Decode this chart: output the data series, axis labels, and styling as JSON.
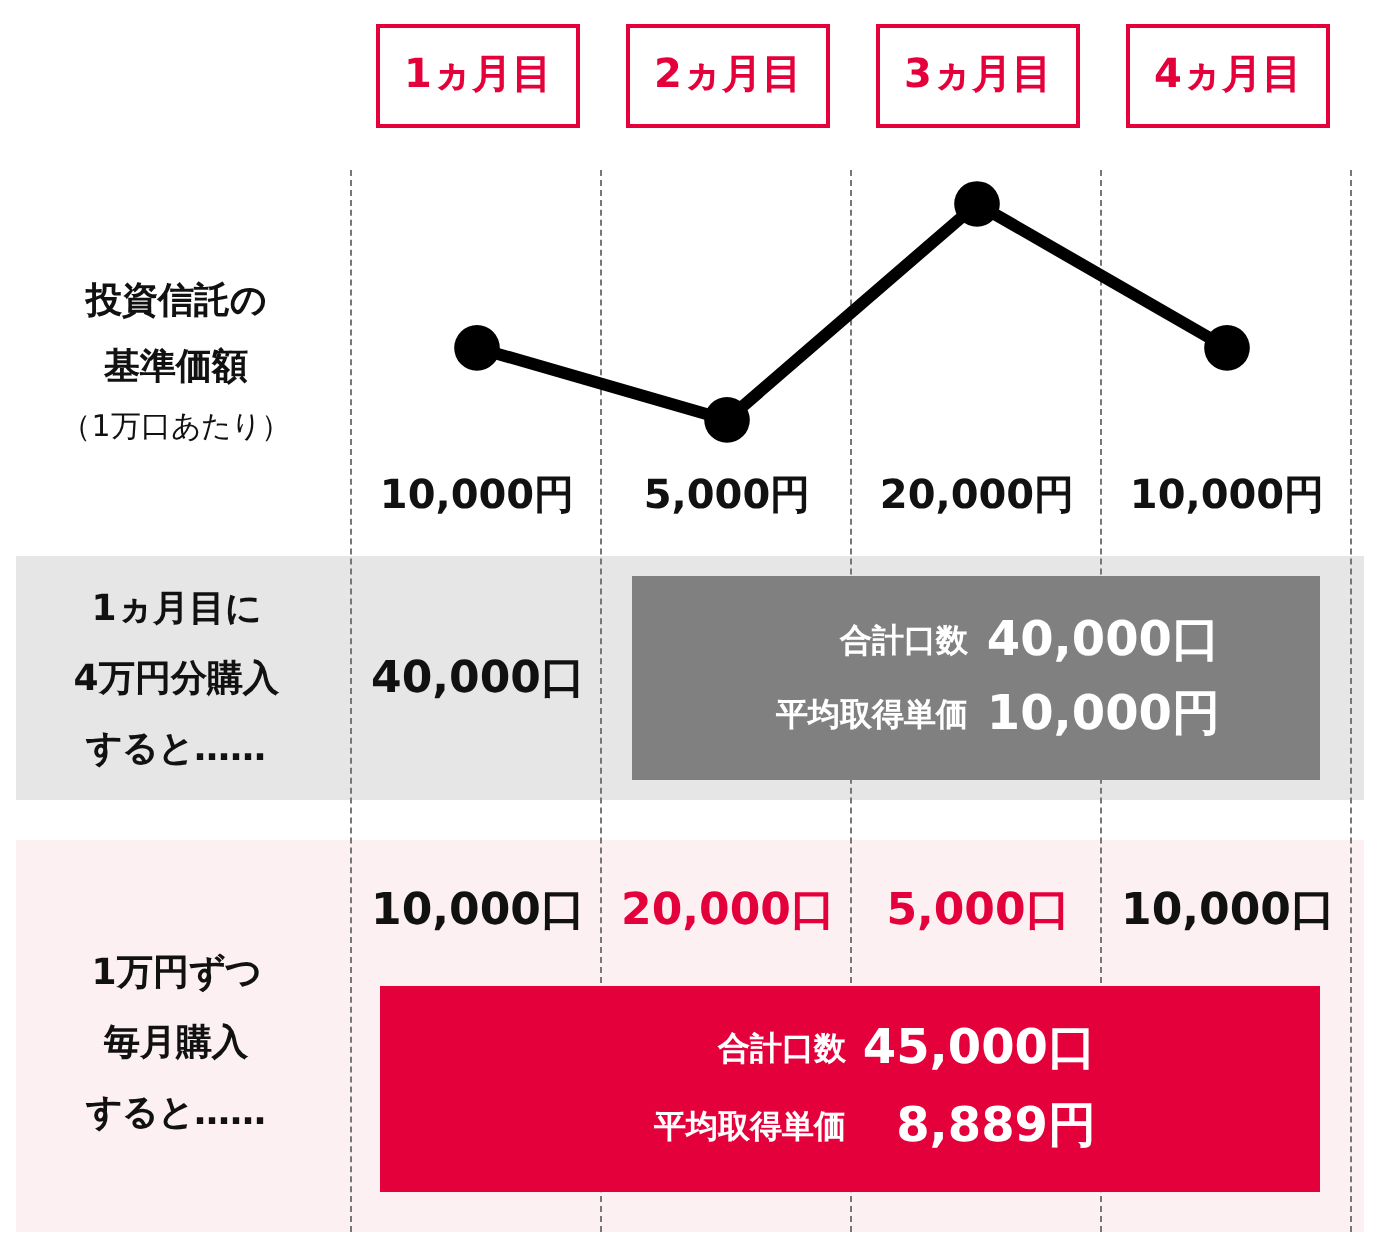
{
  "chart_data": {
    "type": "line",
    "ylabel": "投資信託の基準価額",
    "categories": [
      "1ヵ月目",
      "2ヵ月目",
      "3ヵ月目",
      "4ヵ月目"
    ],
    "series": [
      {
        "color": "#000000",
        "values": [
          10000,
          5000,
          20000,
          10000
        ],
        "value_labels": [
          "10,000円",
          "5,000円",
          "20,000円",
          "10,000円"
        ]
      }
    ],
    "marker": "circle",
    "annotations": [
      "（1万口あたり）",
      "1ヵ月目に",
      "4万円分購入",
      "すると……",
      "40,000口",
      "合計口数",
      "40,000口",
      "平均取得単価",
      "10,000円",
      "1万円ずつ",
      "毎月購入",
      "すると……",
      "10,000口",
      "20,000口",
      "5,000口",
      "10,000口",
      "合計口数",
      "45,000口",
      "平均取得単価",
      "8,889円"
    ]
  }
}
